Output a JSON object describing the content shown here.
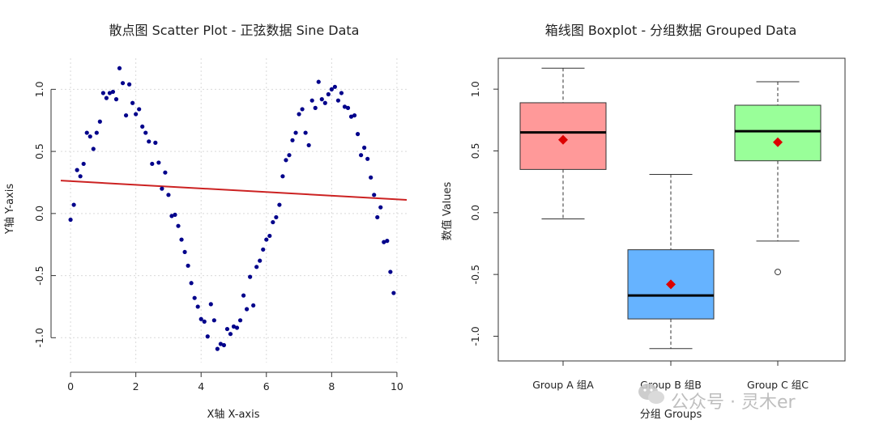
{
  "chart_data": [
    {
      "type": "scatter",
      "title": "散点图 Scatter Plot - 正弦数据 Sine Data",
      "xlabel": "X轴 X-axis",
      "ylabel": "Y轴 Y-axis",
      "xlim": [
        -0.3,
        10.3
      ],
      "ylim": [
        -1.2,
        1.25
      ],
      "xticks": [
        "0",
        "2",
        "4",
        "6",
        "8",
        "10"
      ],
      "yticks": [
        "-1.0",
        "-0.5",
        "0.0",
        "0.5",
        "1.0"
      ],
      "grid": true,
      "point_color": "#00008b",
      "trendline": {
        "type": "linear",
        "x": [
          -0.3,
          10.3
        ],
        "y": [
          0.265,
          0.11
        ],
        "color": "#cc2222"
      },
      "points": [
        [
          0.0,
          -0.05
        ],
        [
          0.1,
          0.07
        ],
        [
          0.2,
          0.35
        ],
        [
          0.3,
          0.3
        ],
        [
          0.4,
          0.4
        ],
        [
          0.5,
          0.65
        ],
        [
          0.6,
          0.62
        ],
        [
          0.7,
          0.52
        ],
        [
          0.8,
          0.65
        ],
        [
          0.9,
          0.74
        ],
        [
          1.0,
          0.97
        ],
        [
          1.1,
          0.93
        ],
        [
          1.2,
          0.97
        ],
        [
          1.3,
          0.98
        ],
        [
          1.4,
          0.92
        ],
        [
          1.5,
          1.17
        ],
        [
          1.6,
          1.05
        ],
        [
          1.7,
          0.79
        ],
        [
          1.8,
          1.04
        ],
        [
          1.9,
          0.89
        ],
        [
          2.0,
          0.8
        ],
        [
          2.1,
          0.84
        ],
        [
          2.2,
          0.7
        ],
        [
          2.3,
          0.65
        ],
        [
          2.4,
          0.58
        ],
        [
          2.5,
          0.4
        ],
        [
          2.6,
          0.57
        ],
        [
          2.7,
          0.41
        ],
        [
          2.8,
          0.2
        ],
        [
          2.9,
          0.33
        ],
        [
          3.0,
          0.15
        ],
        [
          3.1,
          -0.02
        ],
        [
          3.2,
          -0.01
        ],
        [
          3.3,
          -0.1
        ],
        [
          3.4,
          -0.21
        ],
        [
          3.5,
          -0.31
        ],
        [
          3.6,
          -0.42
        ],
        [
          3.7,
          -0.56
        ],
        [
          3.8,
          -0.68
        ],
        [
          3.9,
          -0.75
        ],
        [
          4.0,
          -0.85
        ],
        [
          4.1,
          -0.87
        ],
        [
          4.2,
          -0.99
        ],
        [
          4.3,
          -0.73
        ],
        [
          4.4,
          -0.86
        ],
        [
          4.5,
          -1.09
        ],
        [
          4.6,
          -1.05
        ],
        [
          4.7,
          -1.06
        ],
        [
          4.8,
          -0.93
        ],
        [
          4.9,
          -0.97
        ],
        [
          5.0,
          -0.91
        ],
        [
          5.1,
          -0.92
        ],
        [
          5.2,
          -0.86
        ],
        [
          5.3,
          -0.66
        ],
        [
          5.4,
          -0.77
        ],
        [
          5.5,
          -0.51
        ],
        [
          5.6,
          -0.74
        ],
        [
          5.7,
          -0.43
        ],
        [
          5.8,
          -0.38
        ],
        [
          5.9,
          -0.29
        ],
        [
          6.0,
          -0.21
        ],
        [
          6.1,
          -0.18
        ],
        [
          6.2,
          -0.07
        ],
        [
          6.3,
          -0.03
        ],
        [
          6.4,
          0.07
        ],
        [
          6.5,
          0.3
        ],
        [
          6.6,
          0.43
        ],
        [
          6.7,
          0.47
        ],
        [
          6.8,
          0.59
        ],
        [
          6.9,
          0.65
        ],
        [
          7.0,
          0.8
        ],
        [
          7.1,
          0.84
        ],
        [
          7.2,
          0.65
        ],
        [
          7.3,
          0.55
        ],
        [
          7.4,
          0.91
        ],
        [
          7.5,
          0.85
        ],
        [
          7.6,
          1.06
        ],
        [
          7.7,
          0.92
        ],
        [
          7.8,
          0.89
        ],
        [
          7.9,
          0.96
        ],
        [
          8.0,
          1.0
        ],
        [
          8.1,
          1.02
        ],
        [
          8.2,
          0.91
        ],
        [
          8.3,
          0.97
        ],
        [
          8.4,
          0.86
        ],
        [
          8.5,
          0.85
        ],
        [
          8.6,
          0.78
        ],
        [
          8.7,
          0.79
        ],
        [
          8.8,
          0.64
        ],
        [
          8.9,
          0.47
        ],
        [
          9.0,
          0.53
        ],
        [
          9.1,
          0.44
        ],
        [
          9.2,
          0.29
        ],
        [
          9.3,
          0.15
        ],
        [
          9.4,
          -0.03
        ],
        [
          9.5,
          0.05
        ],
        [
          9.6,
          -0.23
        ],
        [
          9.7,
          -0.22
        ],
        [
          9.8,
          -0.47
        ],
        [
          9.9,
          -0.64
        ]
      ]
    },
    {
      "type": "boxplot",
      "title": "箱线图 Boxplot - 分组数据 Grouped Data",
      "xlabel": "分组 Groups",
      "ylabel": "数值 Values",
      "ylim": [
        -1.2,
        1.25
      ],
      "yticks": [
        "-1.0",
        "-0.5",
        "0.0",
        "0.5",
        "1.0"
      ],
      "categories": [
        "Group A 组A",
        "Group B 组B",
        "Group C 组C"
      ],
      "groups": [
        {
          "name": "Group A 组A",
          "whisker_low": -0.05,
          "q1": 0.35,
          "median": 0.65,
          "q3": 0.89,
          "whisker_high": 1.17,
          "mean": 0.59,
          "outliers": [],
          "color": "#ff9999"
        },
        {
          "name": "Group B 组B",
          "whisker_low": -1.1,
          "q1": -0.86,
          "median": -0.67,
          "q3": -0.3,
          "whisker_high": 0.31,
          "mean": -0.58,
          "outliers": [],
          "color": "#66b3ff"
        },
        {
          "name": "Group C 组C",
          "whisker_low": -0.23,
          "q1": 0.42,
          "median": 0.66,
          "q3": 0.87,
          "whisker_high": 1.06,
          "mean": 0.57,
          "outliers": [
            -0.48
          ],
          "color": "#99ff99"
        }
      ],
      "mean_marker_color": "#dd0000"
    }
  ],
  "watermark": {
    "text": "公众号 · 灵木er"
  }
}
